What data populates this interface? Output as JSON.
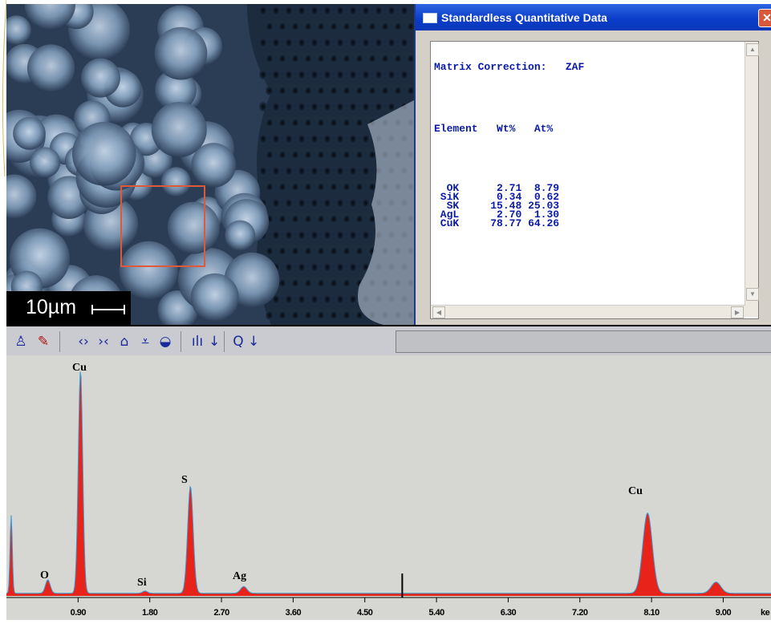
{
  "sem_image": {
    "scale_label": "10µm"
  },
  "quant_window": {
    "title": "Standardless Quantitative Data",
    "matrix_label": "Matrix Correction:",
    "matrix_value": "ZAF",
    "header_element": "Element",
    "header_wt": "Wt%",
    "header_at": "At%",
    "rows": [
      {
        "element": "OK",
        "wt": "2.71",
        "at": "8.79"
      },
      {
        "element": "SiK",
        "wt": "0.34",
        "at": "0.62"
      },
      {
        "element": "SK",
        "wt": "15.48",
        "at": "25.03"
      },
      {
        "element": "AgL",
        "wt": "2.70",
        "at": "1.30"
      },
      {
        "element": "CuK",
        "wt": "78.77",
        "at": "64.26"
      }
    ]
  },
  "toolbar": {
    "icons": [
      "person-icon",
      "brush-icon",
      "expand-icon",
      "contract-icon",
      "peak-up-icon",
      "peak-down-icon",
      "erase-icon",
      "peak-label-icon",
      "arrow-down-icon",
      "zoom-icon",
      "arrow-down-icon"
    ]
  },
  "chart_data": {
    "type": "line",
    "title": "",
    "xlabel": "keV",
    "ylabel": "",
    "x_ticks": [
      "0.90",
      "1.80",
      "2.70",
      "3.60",
      "4.50",
      "5.40",
      "6.30",
      "7.20",
      "8.10",
      "9.00"
    ],
    "xlim": [
      0.0,
      9.6
    ],
    "peaks": [
      {
        "label": "O",
        "energy": 0.52,
        "height": 0.06
      },
      {
        "label": "Cu",
        "energy": 0.93,
        "height": 1.0
      },
      {
        "label": "Si",
        "energy": 1.74,
        "height": 0.01
      },
      {
        "label": "S",
        "energy": 2.31,
        "height": 0.48
      },
      {
        "label": "Ag",
        "energy": 2.98,
        "height": 0.03
      },
      {
        "label": "Cu",
        "energy": 8.05,
        "height": 0.36
      },
      {
        "label": "",
        "energy": 8.91,
        "height": 0.05
      }
    ],
    "marker_energy": 4.97,
    "colors": {
      "fill": "#e8231a",
      "line": "#3a9ad0",
      "background": "#d6d6d3"
    }
  },
  "peak_labels": {
    "o": "O",
    "cu1": "Cu",
    "si": "Si",
    "s": "S",
    "ag": "Ag",
    "cu2": "Cu"
  },
  "axis": {
    "unit_partial": "ke"
  }
}
